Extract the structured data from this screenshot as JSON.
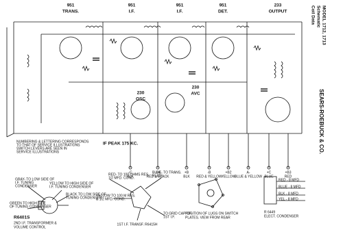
{
  "header": {
    "model": [
      "MODEL 1712, 1713",
      "Schematic",
      "Coil Data"
    ],
    "maker": "SEARS-ROEBUCK & CO."
  },
  "tubes": [
    {
      "type": "951",
      "role": "TRANS."
    },
    {
      "type": "951",
      "role": "I.F."
    },
    {
      "type": "951",
      "role": "I.F."
    },
    {
      "type": "951",
      "role": "DET."
    },
    {
      "type": "233",
      "role": "OUTPUT"
    },
    {
      "type": "230",
      "role": "AVC"
    },
    {
      "type": "230",
      "role": "OSC"
    }
  ],
  "if_peak": "IF PEAK 175 KC.",
  "note": [
    "NUMBERING & LETTERING CORRESPONDS",
    "TO THAT OF SERVICE ILLUSTRATIONS",
    "SWITCH LEVERS ARE SEEN IN",
    "SERVICE ILLUSTRATIONS"
  ],
  "battery_leads": [
    {
      "terminal": "-C",
      "color": "BLK"
    },
    {
      "terminal": "-B4",
      "color": "RED & BLACK"
    },
    {
      "terminal": "+B",
      "color": "BLK"
    },
    {
      "terminal": "-B",
      "color": "RED & YELLOW"
    },
    {
      "terminal": "+B2",
      "color": "YELLOW"
    },
    {
      "terminal": "A-",
      "color": "BLUE & YELLOW"
    },
    {
      "terminal": "+C",
      "color": "BLUE"
    },
    {
      "terminal": "+B3",
      "color": "RED"
    }
  ],
  "volume_control": {
    "leads": [
      [
        "GRAY- TO LOW SIDE OF",
        "I.F. TUNING",
        "CONDENSER"
      ],
      [
        "YELLOW TO HIGH SIDE OF",
        "I.F. TUNING CONDENSER"
      ],
      [
        "GREEN TO HIGH SIDE",
        "OF TUNING CONDENSER"
      ],
      [
        "BLACK TO LOW SIDE OF",
        "TUNING CONDENSER"
      ]
    ],
    "part": "R6401S",
    "caption": [
      "2ND I.F. TRANSFORMER &",
      "VOLUME CONTROL"
    ]
  },
  "if_transformer": {
    "leads": [
      [
        "RED- TO 100 OHMS RES.",
        "1/2 MFD. COND."
      ],
      [
        "BLUE- TO TRANS.",
        "PLATE"
      ],
      [
        "YELLOW TO 100 M RES.",
        "& 1/2 MFD. COND."
      ],
      [
        "TO GRID CAP OF",
        "1ST I.F."
      ]
    ],
    "caption": "1ST I.F. TRANSF. R6415H"
  },
  "switch": [
    "POSITION OF LUGS ON SWITCH",
    "PLATES. VIEW FROM REAR"
  ],
  "condenser": {
    "leads": [
      "RED - 8 MFD",
      "BLUE - 8 MFD",
      "BLK - 8 MFD",
      "YEL - 8 MFD"
    ],
    "caption": [
      "R 6449",
      "ELECT. CONDENSER"
    ]
  }
}
